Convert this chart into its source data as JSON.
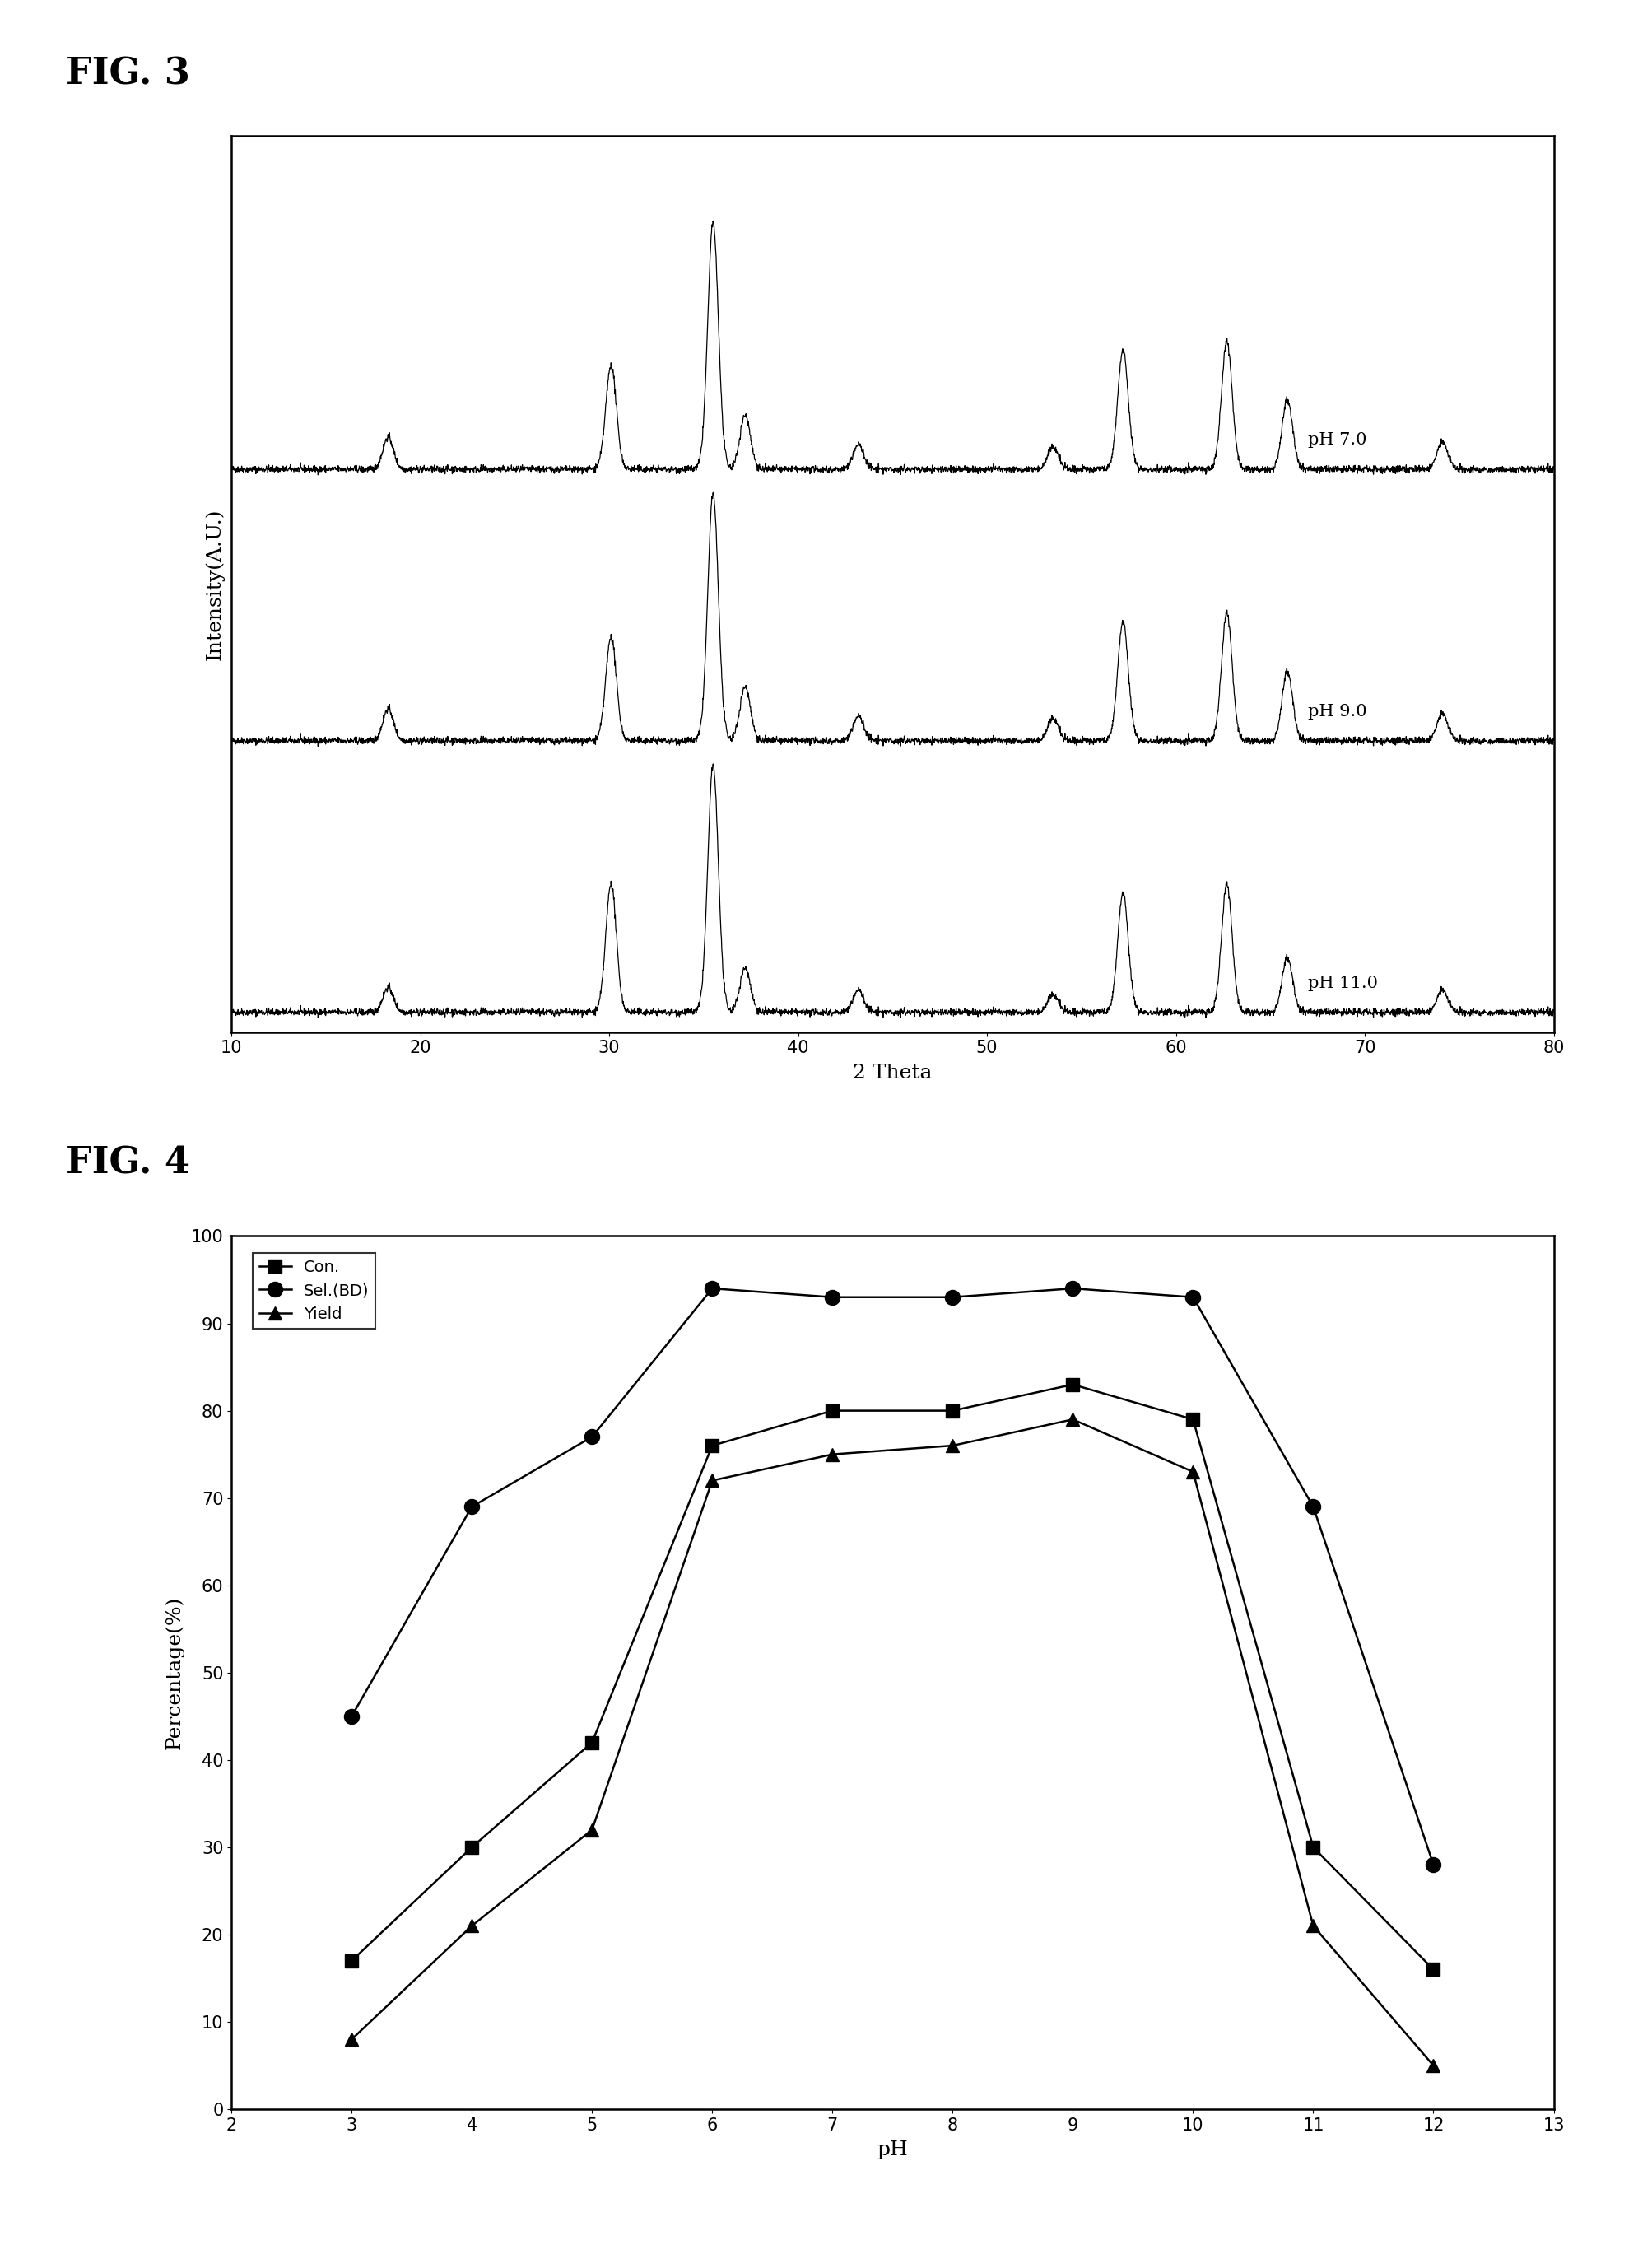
{
  "fig3_title": "FIG. 3",
  "fig4_title": "FIG. 4",
  "xrd_xlim": [
    10,
    80
  ],
  "xrd_xlabel": "2 Theta",
  "xrd_ylabel": "Intensity(A.U.)",
  "xrd_labels": [
    "pH 7.0",
    "pH 9.0",
    "pH 11.0"
  ],
  "xrd_offsets": [
    2.2,
    1.1,
    0.0
  ],
  "xrd_peaks": {
    "pH7": [
      18.3,
      30.1,
      35.5,
      37.2,
      43.2,
      53.5,
      57.2,
      62.7,
      65.9,
      74.1
    ],
    "pH9": [
      18.3,
      30.1,
      35.5,
      37.2,
      43.2,
      53.5,
      57.2,
      62.7,
      65.9,
      74.1
    ],
    "pH11": [
      18.3,
      30.1,
      35.5,
      37.2,
      43.2,
      53.5,
      57.2,
      62.7,
      65.9,
      74.1
    ]
  },
  "xrd_peak_heights": {
    "pH7": [
      0.13,
      0.42,
      1.0,
      0.22,
      0.1,
      0.09,
      0.48,
      0.52,
      0.28,
      0.11
    ],
    "pH9": [
      0.13,
      0.42,
      1.0,
      0.22,
      0.1,
      0.09,
      0.48,
      0.52,
      0.28,
      0.11
    ],
    "pH11": [
      0.1,
      0.52,
      1.0,
      0.18,
      0.09,
      0.07,
      0.48,
      0.52,
      0.22,
      0.09
    ]
  },
  "ph_data": {
    "pH": [
      3,
      4,
      5,
      6,
      7,
      8,
      9,
      10,
      11,
      12
    ],
    "Con": [
      17,
      30,
      42,
      76,
      80,
      80,
      83,
      79,
      30,
      16
    ],
    "Sel_BD": [
      45,
      69,
      77,
      94,
      93,
      93,
      94,
      93,
      69,
      28
    ],
    "Yield": [
      8,
      21,
      32,
      72,
      75,
      76,
      79,
      73,
      21,
      5
    ]
  },
  "fig4_xlabel": "pH",
  "fig4_ylabel": "Percentage(%)",
  "fig4_xlim": [
    2,
    13
  ],
  "fig4_ylim": [
    0,
    100
  ],
  "legend_labels": [
    "Con.",
    "Sel.(BD)",
    "Yield"
  ],
  "background_color": "#ffffff"
}
